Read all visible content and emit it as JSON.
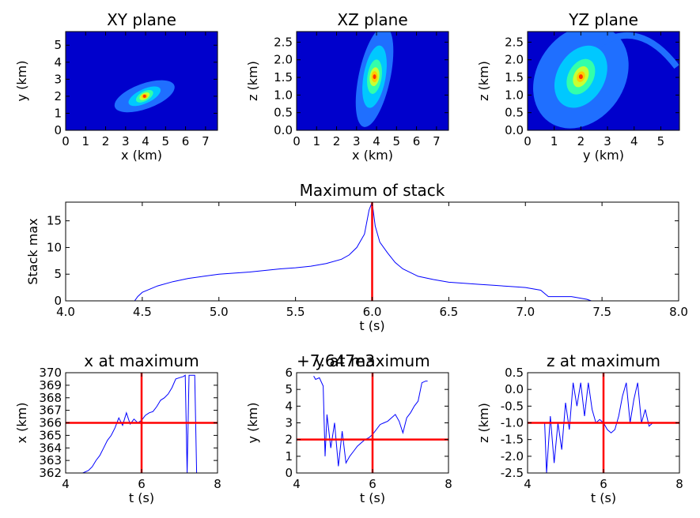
{
  "colors": {
    "line": "#0000ff",
    "marker": "#ff0000",
    "contour_levels": [
      "#0000cc",
      "#1f6fff",
      "#00c8ff",
      "#33ffaa",
      "#c8ff33",
      "#ffcc00",
      "#ff3300"
    ]
  },
  "chart_data": [
    {
      "id": "xy",
      "type": "heatmap",
      "title": "XY plane",
      "xlabel": "x (km)",
      "ylabel": "y (km)",
      "xlim": [
        0,
        7.6
      ],
      "ylim": [
        0,
        5.8
      ],
      "xticks": [
        "0",
        "1",
        "2",
        "3",
        "4",
        "5",
        "6",
        "7"
      ],
      "yticks": [
        "0",
        "1",
        "2",
        "3",
        "4",
        "5"
      ],
      "peak": [
        3.95,
        2.0
      ]
    },
    {
      "id": "xz",
      "type": "heatmap",
      "title": "XZ plane",
      "xlabel": "x (km)",
      "ylabel": "z (km)",
      "xlim": [
        0,
        7.6
      ],
      "ylim": [
        0,
        2.8
      ],
      "xticks": [
        "0",
        "1",
        "2",
        "3",
        "4",
        "5",
        "6",
        "7"
      ],
      "yticks": [
        "0.0",
        "0.5",
        "1.0",
        "1.5",
        "2.0",
        "2.5"
      ],
      "peak": [
        3.9,
        1.52
      ]
    },
    {
      "id": "yz",
      "type": "heatmap",
      "title": "YZ plane",
      "xlabel": "y (km)",
      "ylabel": "z (km)",
      "xlim": [
        0,
        5.7
      ],
      "ylim": [
        0,
        2.8
      ],
      "xticks": [
        "0",
        "1",
        "2",
        "3",
        "4",
        "5"
      ],
      "yticks": [
        "0.0",
        "0.5",
        "1.0",
        "1.5",
        "2.0",
        "2.5"
      ],
      "peak": [
        2.0,
        1.52
      ]
    },
    {
      "id": "stack",
      "type": "line",
      "title": "Maximum of stack",
      "xlabel": "t (s)",
      "ylabel": "Stack max",
      "xlim": [
        4.0,
        8.0
      ],
      "ylim": [
        0,
        18.5
      ],
      "xticks": [
        "4.0",
        "4.5",
        "5.0",
        "5.5",
        "6.0",
        "6.5",
        "7.0",
        "7.5",
        "8.0"
      ],
      "yticks": [
        "0",
        "5",
        "10",
        "15"
      ],
      "vline": 6.0,
      "x": [
        4.45,
        4.47,
        4.5,
        4.6,
        4.7,
        4.8,
        4.9,
        5.0,
        5.1,
        5.2,
        5.3,
        5.4,
        5.5,
        5.6,
        5.7,
        5.8,
        5.85,
        5.9,
        5.95,
        5.98,
        6.0,
        6.02,
        6.05,
        6.1,
        6.15,
        6.2,
        6.3,
        6.4,
        6.5,
        6.6,
        6.7,
        6.8,
        6.9,
        7.0,
        7.1,
        7.15,
        7.2,
        7.3,
        7.4,
        7.43
      ],
      "y": [
        0,
        0.8,
        1.6,
        2.8,
        3.6,
        4.2,
        4.6,
        5.0,
        5.2,
        5.4,
        5.7,
        6.0,
        6.2,
        6.5,
        7.0,
        7.8,
        8.6,
        10.0,
        12.5,
        17.0,
        18.5,
        14.0,
        11.0,
        9.0,
        7.2,
        6.0,
        4.6,
        4.0,
        3.5,
        3.3,
        3.1,
        2.9,
        2.7,
        2.5,
        2.0,
        0.8,
        0.8,
        0.8,
        0.3,
        0
      ]
    },
    {
      "id": "xmax",
      "type": "line",
      "title": "x at maximum",
      "xlabel": "t (s)",
      "ylabel": "x (km)",
      "xlim": [
        4,
        8
      ],
      "ylim": [
        362,
        370
      ],
      "xticks": [
        "4",
        "6",
        "8"
      ],
      "yticks": [
        "362",
        "363",
        "364",
        "365",
        "366",
        "367",
        "368",
        "369",
        "370"
      ],
      "vline": 6,
      "hline": 366,
      "x": [
        4.45,
        4.6,
        4.7,
        4.8,
        4.9,
        5.0,
        5.1,
        5.2,
        5.3,
        5.4,
        5.5,
        5.6,
        5.7,
        5.8,
        5.9,
        6.0,
        6.1,
        6.2,
        6.3,
        6.4,
        6.5,
        6.6,
        6.7,
        6.8,
        6.9,
        7.0,
        7.1,
        7.15,
        7.2,
        7.25,
        7.3,
        7.4,
        7.45
      ],
      "y": [
        362.0,
        362.2,
        362.5,
        363.0,
        363.4,
        364.0,
        364.6,
        365.0,
        365.6,
        366.4,
        365.8,
        366.8,
        365.9,
        366.3,
        366.0,
        366.2,
        366.6,
        366.8,
        366.9,
        367.3,
        367.8,
        368.0,
        368.3,
        368.8,
        369.5,
        369.6,
        369.7,
        369.8,
        362.0,
        369.8,
        369.8,
        369.8,
        362.0
      ]
    },
    {
      "id": "ymax",
      "type": "line",
      "title": "y at maximum",
      "offset_text": "+7.647e3",
      "xlabel": "t (s)",
      "ylabel": "y (km)",
      "xlim": [
        4,
        8
      ],
      "ylim": [
        0,
        6
      ],
      "xticks": [
        "4",
        "6",
        "8"
      ],
      "yticks": [
        "0",
        "1",
        "2",
        "3",
        "4",
        "5",
        "6"
      ],
      "vline": 6,
      "hline": 2,
      "x": [
        4.45,
        4.5,
        4.6,
        4.7,
        4.75,
        4.8,
        4.9,
        5.0,
        5.1,
        5.2,
        5.3,
        5.4,
        5.5,
        5.6,
        5.7,
        5.8,
        5.9,
        6.0,
        6.1,
        6.2,
        6.3,
        6.4,
        6.5,
        6.6,
        6.7,
        6.8,
        6.9,
        7.0,
        7.1,
        7.2,
        7.3,
        7.4,
        7.45
      ],
      "y": [
        5.8,
        5.6,
        5.7,
        5.2,
        1.0,
        3.5,
        1.5,
        3.0,
        0.4,
        2.5,
        0.6,
        1.0,
        1.3,
        1.6,
        1.8,
        2.0,
        2.1,
        2.3,
        2.6,
        2.9,
        3.0,
        3.1,
        3.3,
        3.5,
        3.1,
        2.4,
        3.3,
        3.6,
        4.0,
        4.3,
        5.4,
        5.5,
        5.5
      ]
    },
    {
      "id": "zmax",
      "type": "line",
      "title": "z at maximum",
      "xlabel": "t (s)",
      "ylabel": "z (km)",
      "xlim": [
        4,
        8
      ],
      "ylim": [
        -2.5,
        0.5
      ],
      "xticks": [
        "4",
        "6",
        "8"
      ],
      "yticks": [
        "-2.5",
        "-2.0",
        "-1.5",
        "-1.0",
        "-0.5",
        "0.0",
        "0.5"
      ],
      "vline": 6,
      "hline": -1.0,
      "x": [
        4.45,
        4.5,
        4.6,
        4.7,
        4.8,
        4.9,
        5.0,
        5.1,
        5.2,
        5.3,
        5.4,
        5.5,
        5.6,
        5.7,
        5.8,
        5.9,
        6.0,
        6.1,
        6.2,
        6.3,
        6.4,
        6.5,
        6.6,
        6.7,
        6.8,
        6.9,
        7.0,
        7.1,
        7.2,
        7.3,
        7.4
      ],
      "y": [
        -1.0,
        -2.5,
        -0.8,
        -2.2,
        -1.0,
        -1.8,
        -0.4,
        -1.2,
        0.2,
        -0.5,
        0.2,
        -0.8,
        0.2,
        -0.6,
        -1.0,
        -0.9,
        -1.0,
        -1.2,
        -1.3,
        -1.2,
        -0.8,
        -0.2,
        0.2,
        -1.0,
        -0.3,
        0.2,
        -1.0,
        -0.6,
        -1.1,
        -1.0,
        -1.0
      ]
    }
  ]
}
